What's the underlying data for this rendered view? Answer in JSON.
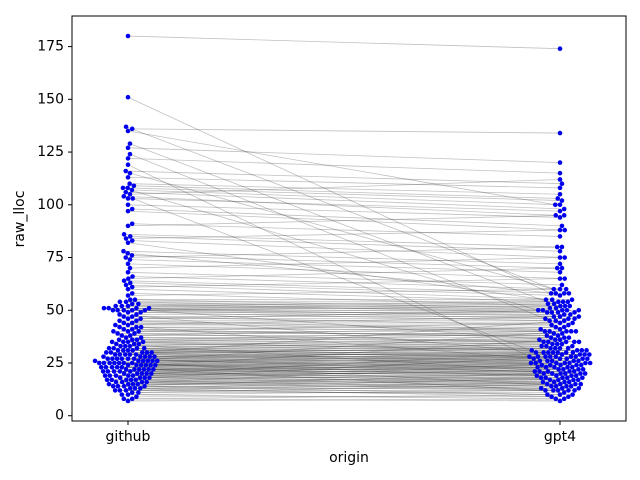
{
  "figure": {
    "background": "#ffffff"
  },
  "chart_data": {
    "type": "scatter",
    "subtype": "paired-beeswarm-slope",
    "title": "",
    "xlabel": "origin",
    "ylabel": "raw_lloc",
    "categories": [
      "github",
      "gpt4"
    ],
    "yticks": [
      0,
      25,
      50,
      75,
      100,
      125,
      150,
      175
    ],
    "ylim": [
      -2.5,
      189.5
    ],
    "grid": false,
    "legend": "none",
    "point_color": "#0000ee",
    "line_color": "#333333",
    "line_opacity": 0.3,
    "spine_color": "#000000",
    "pairs": [
      [
        7,
        8
      ],
      [
        8,
        10
      ],
      [
        8,
        7
      ],
      [
        9,
        9
      ],
      [
        10,
        12
      ],
      [
        10,
        8
      ],
      [
        11,
        11
      ],
      [
        11,
        15
      ],
      [
        12,
        10
      ],
      [
        12,
        12
      ],
      [
        12,
        16
      ],
      [
        13,
        13
      ],
      [
        13,
        9
      ],
      [
        13,
        18
      ],
      [
        14,
        14
      ],
      [
        14,
        12
      ],
      [
        14,
        20
      ],
      [
        14,
        10
      ],
      [
        15,
        15
      ],
      [
        15,
        13
      ],
      [
        15,
        17
      ],
      [
        15,
        25
      ],
      [
        16,
        16
      ],
      [
        16,
        12
      ],
      [
        16,
        18
      ],
      [
        16,
        14
      ],
      [
        17,
        17
      ],
      [
        17,
        20
      ],
      [
        17,
        15
      ],
      [
        17,
        13
      ],
      [
        17,
        28
      ],
      [
        18,
        18
      ],
      [
        18,
        16
      ],
      [
        18,
        22
      ],
      [
        18,
        14
      ],
      [
        19,
        19
      ],
      [
        19,
        17
      ],
      [
        19,
        23
      ],
      [
        19,
        15
      ],
      [
        19,
        21
      ],
      [
        20,
        20
      ],
      [
        20,
        18
      ],
      [
        20,
        24
      ],
      [
        20,
        16
      ],
      [
        20,
        30
      ],
      [
        21,
        21
      ],
      [
        21,
        19
      ],
      [
        21,
        25
      ],
      [
        21,
        17
      ],
      [
        21,
        23
      ],
      [
        22,
        22
      ],
      [
        22,
        20
      ],
      [
        22,
        26
      ],
      [
        22,
        18
      ],
      [
        22,
        24
      ],
      [
        22,
        12
      ],
      [
        23,
        23
      ],
      [
        23,
        21
      ],
      [
        23,
        27
      ],
      [
        23,
        19
      ],
      [
        23,
        25
      ],
      [
        24,
        24
      ],
      [
        24,
        22
      ],
      [
        24,
        28
      ],
      [
        24,
        20
      ],
      [
        24,
        26
      ],
      [
        24,
        36
      ],
      [
        25,
        25
      ],
      [
        25,
        23
      ],
      [
        25,
        29
      ],
      [
        25,
        21
      ],
      [
        25,
        27
      ],
      [
        25,
        19
      ],
      [
        25,
        40
      ],
      [
        26,
        26
      ],
      [
        26,
        24
      ],
      [
        26,
        30
      ],
      [
        26,
        22
      ],
      [
        26,
        28
      ],
      [
        26,
        14
      ],
      [
        27,
        27
      ],
      [
        27,
        25
      ],
      [
        27,
        31
      ],
      [
        27,
        23
      ],
      [
        27,
        29
      ],
      [
        27,
        21
      ],
      [
        28,
        28
      ],
      [
        28,
        26
      ],
      [
        28,
        32
      ],
      [
        28,
        24
      ],
      [
        28,
        30
      ],
      [
        29,
        29
      ],
      [
        29,
        27
      ],
      [
        29,
        33
      ],
      [
        29,
        25
      ],
      [
        29,
        45
      ],
      [
        30,
        30
      ],
      [
        30,
        28
      ],
      [
        30,
        34
      ],
      [
        30,
        26
      ],
      [
        30,
        32
      ],
      [
        31,
        31
      ],
      [
        31,
        29
      ],
      [
        31,
        35
      ],
      [
        31,
        27
      ],
      [
        32,
        32
      ],
      [
        32,
        30
      ],
      [
        32,
        36
      ],
      [
        32,
        28
      ],
      [
        33,
        33
      ],
      [
        33,
        31
      ],
      [
        33,
        37
      ],
      [
        34,
        34
      ],
      [
        34,
        32
      ],
      [
        34,
        20
      ],
      [
        35,
        35
      ],
      [
        35,
        33
      ],
      [
        35,
        39
      ],
      [
        35,
        31
      ],
      [
        36,
        36
      ],
      [
        36,
        34
      ],
      [
        36,
        40
      ],
      [
        37,
        37
      ],
      [
        37,
        35
      ],
      [
        38,
        38
      ],
      [
        38,
        42
      ],
      [
        39,
        39
      ],
      [
        39,
        35
      ],
      [
        40,
        40
      ],
      [
        40,
        38
      ],
      [
        40,
        44
      ],
      [
        41,
        41
      ],
      [
        41,
        37
      ],
      [
        42,
        42
      ],
      [
        42,
        40
      ],
      [
        42,
        25
      ],
      [
        43,
        43
      ],
      [
        43,
        47
      ],
      [
        44,
        44
      ],
      [
        44,
        40
      ],
      [
        45,
        45
      ],
      [
        45,
        41
      ],
      [
        46,
        46
      ],
      [
        46,
        50
      ],
      [
        47,
        47
      ],
      [
        47,
        43
      ],
      [
        48,
        48
      ],
      [
        48,
        30
      ],
      [
        49,
        49
      ],
      [
        49,
        45
      ],
      [
        50,
        50
      ],
      [
        50,
        48
      ],
      [
        50,
        52
      ],
      [
        50,
        46
      ],
      [
        50,
        35
      ],
      [
        51,
        51
      ],
      [
        51,
        49
      ],
      [
        51,
        53
      ],
      [
        51,
        47
      ],
      [
        52,
        52
      ],
      [
        52,
        50
      ],
      [
        52,
        54
      ],
      [
        53,
        53
      ],
      [
        53,
        49
      ],
      [
        54,
        54
      ],
      [
        54,
        50
      ],
      [
        55,
        55
      ],
      [
        55,
        51
      ],
      [
        57,
        60
      ],
      [
        58,
        52
      ],
      [
        60,
        54
      ],
      [
        61,
        65
      ],
      [
        62,
        55
      ],
      [
        63,
        57
      ],
      [
        64,
        58
      ],
      [
        65,
        70
      ],
      [
        66,
        60
      ],
      [
        68,
        62
      ],
      [
        70,
        75
      ],
      [
        72,
        65
      ],
      [
        74,
        68
      ],
      [
        75,
        80
      ],
      [
        76,
        70
      ],
      [
        77,
        58
      ],
      [
        78,
        72
      ],
      [
        82,
        55
      ],
      [
        83,
        75
      ],
      [
        84,
        88
      ],
      [
        85,
        78
      ],
      [
        86,
        80
      ],
      [
        90,
        95
      ],
      [
        91,
        85
      ],
      [
        97,
        88
      ],
      [
        98,
        90
      ],
      [
        100,
        94
      ],
      [
        103,
        97
      ],
      [
        103,
        30
      ],
      [
        104,
        95
      ],
      [
        105,
        112
      ],
      [
        106,
        98
      ],
      [
        107,
        100
      ],
      [
        108,
        102
      ],
      [
        108,
        50
      ],
      [
        109,
        103
      ],
      [
        110,
        105
      ],
      [
        113,
        108
      ],
      [
        115,
        58
      ],
      [
        116,
        110
      ],
      [
        119,
        28
      ],
      [
        122,
        115
      ],
      [
        124,
        46
      ],
      [
        127,
        120
      ],
      [
        129,
        49
      ],
      [
        135,
        100
      ],
      [
        136,
        134
      ],
      [
        137,
        60
      ],
      [
        151,
        58
      ],
      [
        180,
        174
      ]
    ]
  }
}
